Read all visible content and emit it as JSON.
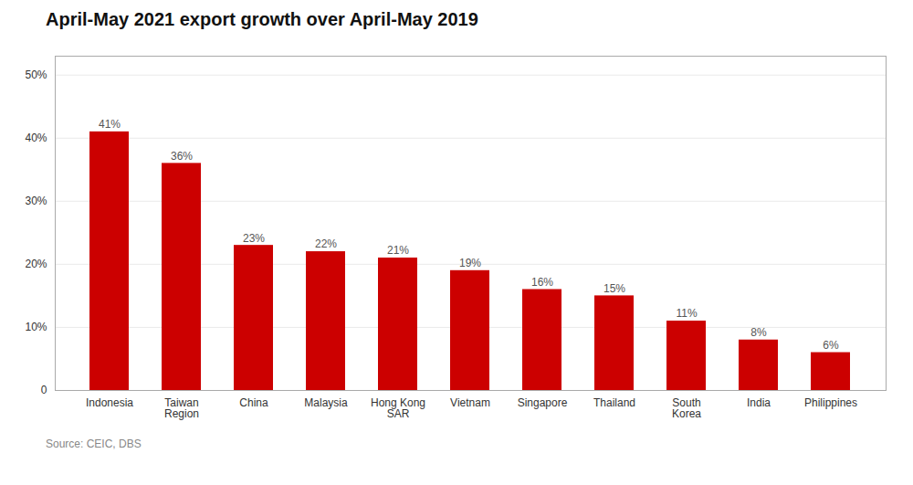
{
  "chart_data": {
    "type": "bar",
    "title": "April-May 2021 export growth over April-May 2019",
    "caption": "Source: CEIC, DBS",
    "categories": [
      "Indonesia",
      "Taiwan\nRegion",
      "China",
      "Malaysia",
      "Hong Kong\nSAR",
      "Vietnam",
      "Singapore",
      "Thailand",
      "South\nKorea",
      "India",
      "Philippines"
    ],
    "values": [
      41,
      36,
      23,
      22,
      21,
      19,
      16,
      15,
      11,
      8,
      6
    ],
    "value_labels": [
      "41%",
      "36%",
      "23%",
      "22%",
      "21%",
      "19%",
      "16%",
      "15%",
      "11%",
      "8%",
      "6%"
    ],
    "data_labels": true,
    "color": "#cc0000",
    "ylim": [
      0,
      53
    ],
    "yticks": [
      0,
      {
        "value": 10,
        "label": "10%"
      },
      {
        "value": 20,
        "label": "20%"
      },
      {
        "value": 30,
        "label": "30%"
      },
      {
        "value": 40,
        "label": "40%"
      },
      {
        "value": 50,
        "label": "50%"
      }
    ],
    "grid": true
  }
}
